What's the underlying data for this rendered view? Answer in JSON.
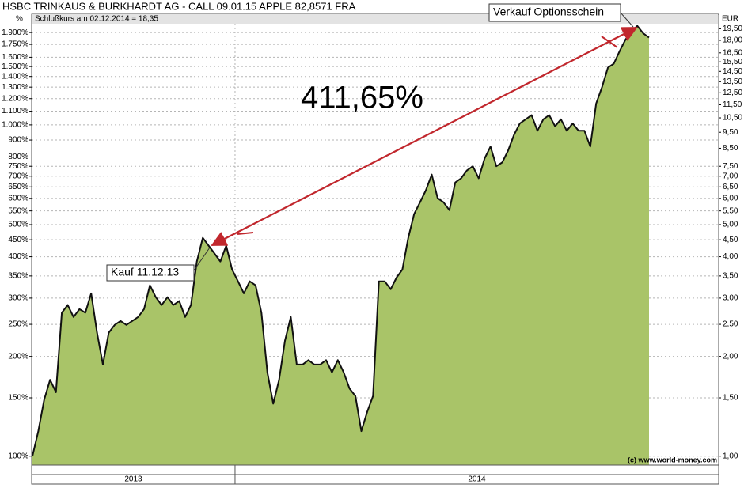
{
  "chart_data": {
    "type": "area",
    "title": "HSBC TRINKAUS & BURKHARDT AG - CALL 09.01.15 APPLE 82,8571 FRA",
    "subtitle": "Schlußkurs am 02.12.2014 = 18,35",
    "y_label": "%",
    "y2_label": "EUR",
    "log_scale": true,
    "grid": true,
    "color": "#a9c468",
    "line_color": "#111111",
    "annotation_color": "#c1272d",
    "periods": [
      {
        "label": "2013",
        "values": [
          1.0,
          1.19,
          1.48,
          1.7,
          1.56,
          2.71,
          2.86,
          2.63,
          2.78,
          2.71,
          3.1,
          2.36,
          1.89,
          2.36,
          2.49,
          2.56,
          2.49,
          2.56,
          2.63,
          2.78,
          3.28,
          3.02,
          2.86,
          3.02,
          2.86,
          2.94,
          2.63,
          2.86,
          3.87,
          4.56,
          4.32,
          4.09,
          3.87,
          4.32,
          3.66
        ]
      },
      {
        "label": "2014",
        "values": [
          3.37,
          3.1,
          3.37,
          3.28,
          2.71,
          1.79,
          1.44,
          1.7,
          2.23,
          2.63,
          1.89,
          1.89,
          1.95,
          1.89,
          1.89,
          1.95,
          1.79,
          1.95,
          1.79,
          1.6,
          1.52,
          1.19,
          1.36,
          1.52,
          3.37,
          3.37,
          3.19,
          3.46,
          3.66,
          4.56,
          5.38,
          5.84,
          6.35,
          7.08,
          6.01,
          5.84,
          5.53,
          6.7,
          6.9,
          7.29,
          7.5,
          6.9,
          7.92,
          8.6,
          7.5,
          7.7,
          8.36,
          9.33,
          10.1,
          10.4,
          10.7,
          9.6,
          10.4,
          10.7,
          9.9,
          10.4,
          9.6,
          10.1,
          9.6,
          9.6,
          8.6,
          11.6,
          13.0,
          14.9,
          15.3,
          16.7,
          18.1,
          19.1,
          19.9,
          18.9,
          18.35
        ]
      }
    ],
    "ylim": [
      94,
      2020
    ],
    "yticks": [
      {
        "value": 100,
        "label": "100%"
      },
      {
        "value": 150,
        "label": "150%"
      },
      {
        "value": 200,
        "label": "200%"
      },
      {
        "value": 250,
        "label": "250%"
      },
      {
        "value": 300,
        "label": "300%"
      },
      {
        "value": 350,
        "label": "350%"
      },
      {
        "value": 400,
        "label": "400%"
      },
      {
        "value": 450,
        "label": "450%"
      },
      {
        "value": 500,
        "label": "500%"
      },
      {
        "value": 550,
        "label": "550%"
      },
      {
        "value": 600,
        "label": "600%"
      },
      {
        "value": 650,
        "label": "650%"
      },
      {
        "value": 700,
        "label": "700%"
      },
      {
        "value": 750,
        "label": "750%"
      },
      {
        "value": 800,
        "label": "800%"
      },
      {
        "value": 900,
        "label": "900%"
      },
      {
        "value": 1000,
        "label": "1.000%"
      },
      {
        "value": 1100,
        "label": "1.100%"
      },
      {
        "value": 1200,
        "label": "1.200%"
      },
      {
        "value": 1300,
        "label": "1.300%"
      },
      {
        "value": 1400,
        "label": "1.400%"
      },
      {
        "value": 1500,
        "label": "1.500%"
      },
      {
        "value": 1600,
        "label": "1.600%"
      },
      {
        "value": 1750,
        "label": "1.750%"
      },
      {
        "value": 1900,
        "label": "1.900%"
      }
    ],
    "y2lim": [
      0.94,
      20.2
    ],
    "y2ticks": [
      {
        "value": 1.0,
        "label": "1,00"
      },
      {
        "value": 1.5,
        "label": "1,50"
      },
      {
        "value": 2.0,
        "label": "2,00"
      },
      {
        "value": 2.5,
        "label": "2,50"
      },
      {
        "value": 3.0,
        "label": "3,00"
      },
      {
        "value": 3.5,
        "label": "3,50"
      },
      {
        "value": 4.0,
        "label": "4,00"
      },
      {
        "value": 4.5,
        "label": "4,50"
      },
      {
        "value": 5.0,
        "label": "5,00"
      },
      {
        "value": 5.5,
        "label": "5,50"
      },
      {
        "value": 6.0,
        "label": "6,00"
      },
      {
        "value": 6.5,
        "label": "6,50"
      },
      {
        "value": 7.0,
        "label": "7,00"
      },
      {
        "value": 7.5,
        "label": "7,50"
      },
      {
        "value": 8.5,
        "label": "8,50"
      },
      {
        "value": 9.5,
        "label": "9,50"
      },
      {
        "value": 10.5,
        "label": "10,50"
      },
      {
        "value": 11.5,
        "label": "11,50"
      },
      {
        "value": 12.5,
        "label": "12,50"
      },
      {
        "value": 13.5,
        "label": "13,50"
      },
      {
        "value": 14.5,
        "label": "14,50"
      },
      {
        "value": 15.5,
        "label": "15,50"
      },
      {
        "value": 16.5,
        "label": "16,50"
      },
      {
        "value": 18.0,
        "label": "18,00"
      },
      {
        "value": 19.5,
        "label": "19,50"
      }
    ],
    "annotations": [
      "411,65%",
      "Kauf 11.12.13",
      "Verkauf Optionsschein"
    ],
    "credit": "(c) www.world-money.com"
  }
}
